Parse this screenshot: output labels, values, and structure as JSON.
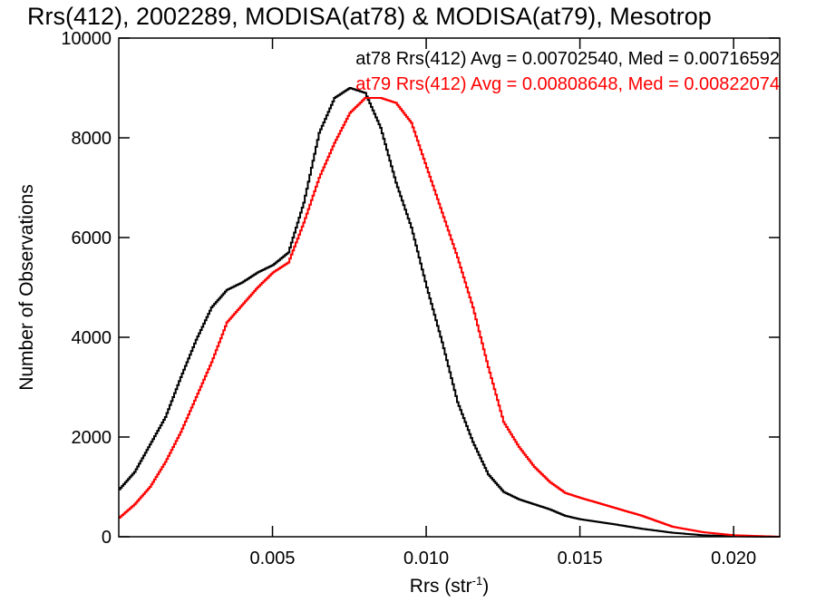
{
  "chart_data": {
    "type": "line",
    "style": "step-histogram",
    "title": "Rrs(412), 2002289, MODISA(at78) & MODISA(at79), Mesotrop",
    "xlabel": "Rrs (str",
    "xlabel_superscript": "-1",
    "xlabel_close": ")",
    "ylabel": "Number of Observations",
    "xlim": [
      0.0,
      0.0215
    ],
    "ylim": [
      0,
      10000
    ],
    "x_ticks": [
      {
        "value": 0.005,
        "label": "0.005"
      },
      {
        "value": 0.01,
        "label": "0.010"
      },
      {
        "value": 0.015,
        "label": "0.015"
      },
      {
        "value": 0.02,
        "label": "0.020"
      }
    ],
    "y_ticks": [
      {
        "value": 0,
        "label": "0"
      },
      {
        "value": 2000,
        "label": "2000"
      },
      {
        "value": 4000,
        "label": "4000"
      },
      {
        "value": 6000,
        "label": "6000"
      },
      {
        "value": 8000,
        "label": "8000"
      },
      {
        "value": 10000,
        "label": "10000"
      }
    ],
    "grid": false,
    "legend_position": "top-right",
    "series": [
      {
        "name": "at78",
        "color": "#000000",
        "stats_label": "at78 Rrs(412) Avg = 0.00702540, Med = 0.00716592",
        "x": [
          0.0,
          0.0005,
          0.001,
          0.0015,
          0.002,
          0.0025,
          0.003,
          0.0035,
          0.004,
          0.0045,
          0.005,
          0.0055,
          0.006,
          0.0065,
          0.007,
          0.0075,
          0.008,
          0.0085,
          0.009,
          0.0095,
          0.01,
          0.0105,
          0.011,
          0.0115,
          0.012,
          0.0125,
          0.013,
          0.0135,
          0.014,
          0.0145,
          0.015,
          0.016,
          0.017,
          0.018,
          0.019,
          0.02,
          0.021,
          0.0215
        ],
        "y": [
          950,
          1300,
          1850,
          2400,
          3200,
          3950,
          4600,
          4950,
          5100,
          5300,
          5450,
          5700,
          6700,
          8100,
          8800,
          9000,
          8900,
          8200,
          7100,
          6200,
          5000,
          3900,
          2700,
          1900,
          1250,
          900,
          750,
          650,
          550,
          420,
          350,
          260,
          160,
          80,
          30,
          10,
          0,
          0
        ]
      },
      {
        "name": "at79",
        "color": "#ff0000",
        "stats_label": "at79 Rrs(412) Avg = 0.00808648, Med = 0.00822074",
        "x": [
          0.0,
          0.0005,
          0.001,
          0.0015,
          0.002,
          0.0025,
          0.003,
          0.0035,
          0.004,
          0.0045,
          0.005,
          0.0055,
          0.006,
          0.0065,
          0.007,
          0.0075,
          0.008,
          0.0085,
          0.009,
          0.0095,
          0.01,
          0.0105,
          0.011,
          0.0115,
          0.012,
          0.0125,
          0.013,
          0.0135,
          0.014,
          0.0145,
          0.015,
          0.016,
          0.017,
          0.018,
          0.019,
          0.02,
          0.021,
          0.0215
        ],
        "y": [
          380,
          650,
          1000,
          1500,
          2100,
          2800,
          3500,
          4300,
          4650,
          5000,
          5300,
          5500,
          6300,
          7200,
          7900,
          8500,
          8800,
          8800,
          8700,
          8300,
          7400,
          6500,
          5600,
          4600,
          3400,
          2300,
          1800,
          1400,
          1100,
          880,
          780,
          600,
          420,
          200,
          90,
          30,
          10,
          0
        ]
      }
    ]
  }
}
